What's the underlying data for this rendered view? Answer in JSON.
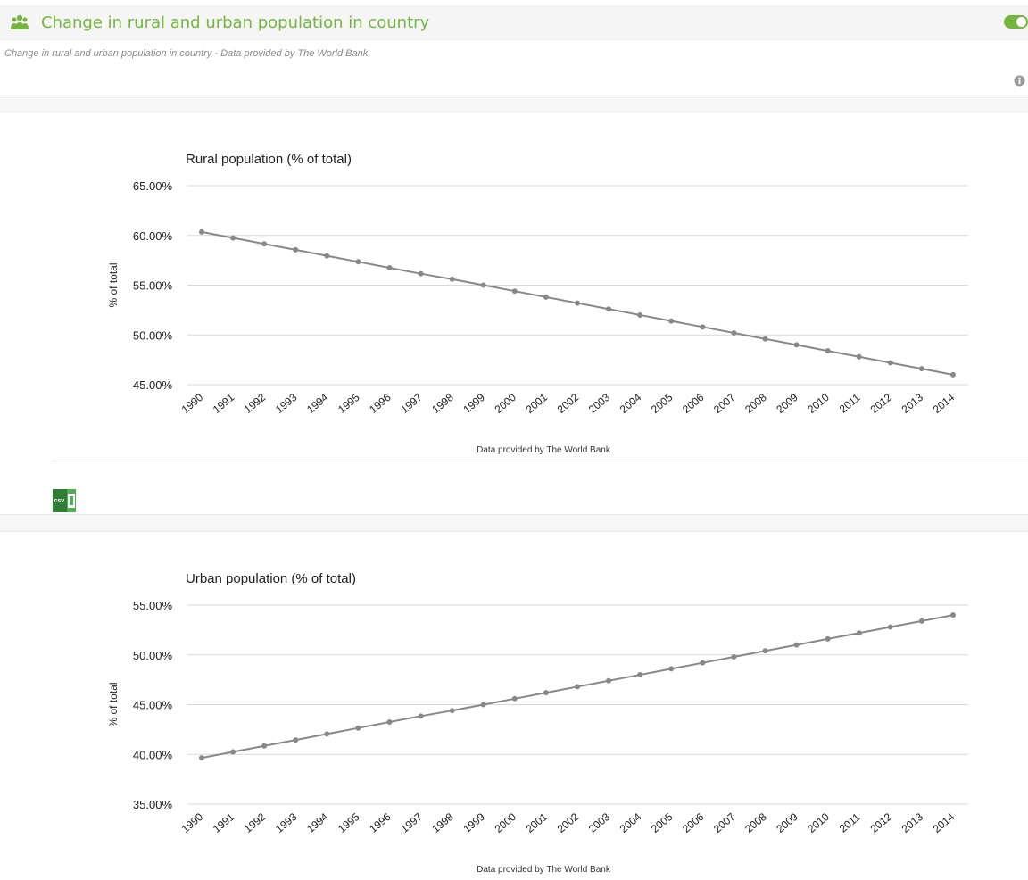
{
  "header": {
    "title": "Change in rural and urban population in country",
    "people_icon": "users-icon",
    "toggle_state": "on",
    "accent_color": "#74b63d"
  },
  "subtitle": "Change in rural and urban population in country - Data provided by The World Bank.",
  "info_icon": "info-icon",
  "csv_icon": "csv-export-icon",
  "csv_icon_text": "csv",
  "chart_data": [
    {
      "type": "line",
      "title": "Rural population (% of total)",
      "ylabel": "% of total",
      "xlabel": "Data provided by The World Bank",
      "ylim": [
        45,
        65
      ],
      "yticks": [
        "45.00%",
        "50.00%",
        "55.00%",
        "60.00%",
        "65.00%"
      ],
      "ytick_values": [
        45,
        50,
        55,
        60,
        65
      ],
      "categories": [
        "1990",
        "1991",
        "1992",
        "1993",
        "1994",
        "1995",
        "1996",
        "1997",
        "1998",
        "1999",
        "2000",
        "2001",
        "2002",
        "2003",
        "2004",
        "2005",
        "2006",
        "2007",
        "2008",
        "2009",
        "2010",
        "2011",
        "2012",
        "2013",
        "2014"
      ],
      "values": [
        60.35,
        59.75,
        59.15,
        58.55,
        57.95,
        57.35,
        56.75,
        56.15,
        55.6,
        55.0,
        54.4,
        53.8,
        53.2,
        52.6,
        52.0,
        51.4,
        50.8,
        50.2,
        49.6,
        49.0,
        48.4,
        47.8,
        47.2,
        46.6,
        46.0
      ],
      "line_color": "#888888",
      "grid": true
    },
    {
      "type": "line",
      "title": "Urban population (% of total)",
      "ylabel": "% of total",
      "xlabel": "Data provided by The World Bank",
      "ylim": [
        35,
        55
      ],
      "yticks": [
        "35.00%",
        "40.00%",
        "45.00%",
        "50.00%",
        "55.00%"
      ],
      "ytick_values": [
        35,
        40,
        45,
        50,
        55
      ],
      "categories": [
        "1990",
        "1991",
        "1992",
        "1993",
        "1994",
        "1995",
        "1996",
        "1997",
        "1998",
        "1999",
        "2000",
        "2001",
        "2002",
        "2003",
        "2004",
        "2005",
        "2006",
        "2007",
        "2008",
        "2009",
        "2010",
        "2011",
        "2012",
        "2013",
        "2014"
      ],
      "values": [
        39.65,
        40.25,
        40.85,
        41.45,
        42.05,
        42.65,
        43.25,
        43.85,
        44.4,
        45.0,
        45.6,
        46.2,
        46.8,
        47.4,
        48.0,
        48.6,
        49.2,
        49.8,
        50.4,
        51.0,
        51.6,
        52.2,
        52.8,
        53.4,
        54.0
      ],
      "line_color": "#888888",
      "grid": true
    }
  ]
}
